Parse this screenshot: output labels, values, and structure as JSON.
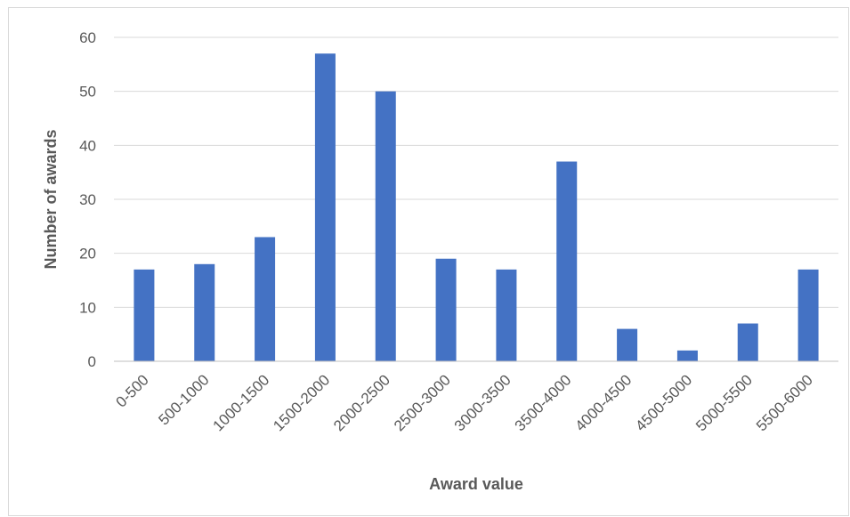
{
  "chart_data": {
    "type": "bar",
    "title": "",
    "xlabel": "Award value",
    "ylabel": "Number of awards",
    "categories": [
      "0-500",
      "500-1000",
      "1000-1500",
      "1500-2000",
      "2000-2500",
      "2500-3000",
      "3000-3500",
      "3500-4000",
      "4000-4500",
      "4500-5000",
      "5000-5500",
      "5500-6000"
    ],
    "values": [
      17,
      18,
      23,
      57,
      50,
      19,
      17,
      37,
      6,
      2,
      7,
      17
    ],
    "ylim": [
      0,
      60
    ],
    "yticks": [
      0,
      10,
      20,
      30,
      40,
      50,
      60
    ],
    "grid": true,
    "legend": "none",
    "bar_color": "#4472C4",
    "grid_color": "#d9d9d9",
    "axis_color": "#bfbfbf"
  }
}
